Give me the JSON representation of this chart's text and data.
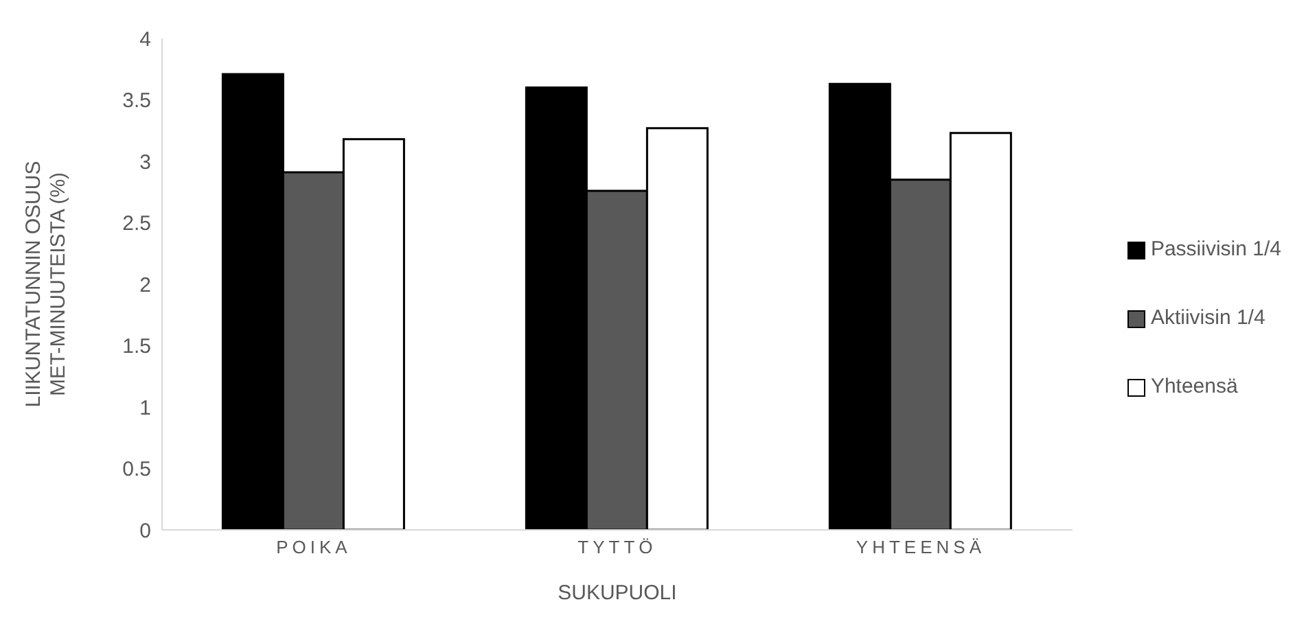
{
  "chart_data": {
    "type": "bar",
    "categories": [
      "POIKA",
      "TYTTÖ",
      "YHTEENSÄ"
    ],
    "series": [
      {
        "name": "Passiivisin 1/4",
        "color": "#000000",
        "values": [
          3.71,
          3.6,
          3.63
        ]
      },
      {
        "name": "Aktiivisin 1/4",
        "color": "#595959",
        "values": [
          2.91,
          2.76,
          2.85
        ]
      },
      {
        "name": "Yhteensä",
        "color": "#ffffff",
        "values": [
          3.18,
          3.27,
          3.23
        ]
      }
    ],
    "xlabel": "SUKUPUOLI",
    "ylabel": "LIIKUNTATUNNIN OSUUS MET-MINUUTEISTA (%)",
    "ylim": [
      0,
      4
    ],
    "yticks": [
      0,
      0.5,
      1,
      1.5,
      2,
      2.5,
      3,
      3.5,
      4
    ],
    "grid": false,
    "legend": "right"
  }
}
